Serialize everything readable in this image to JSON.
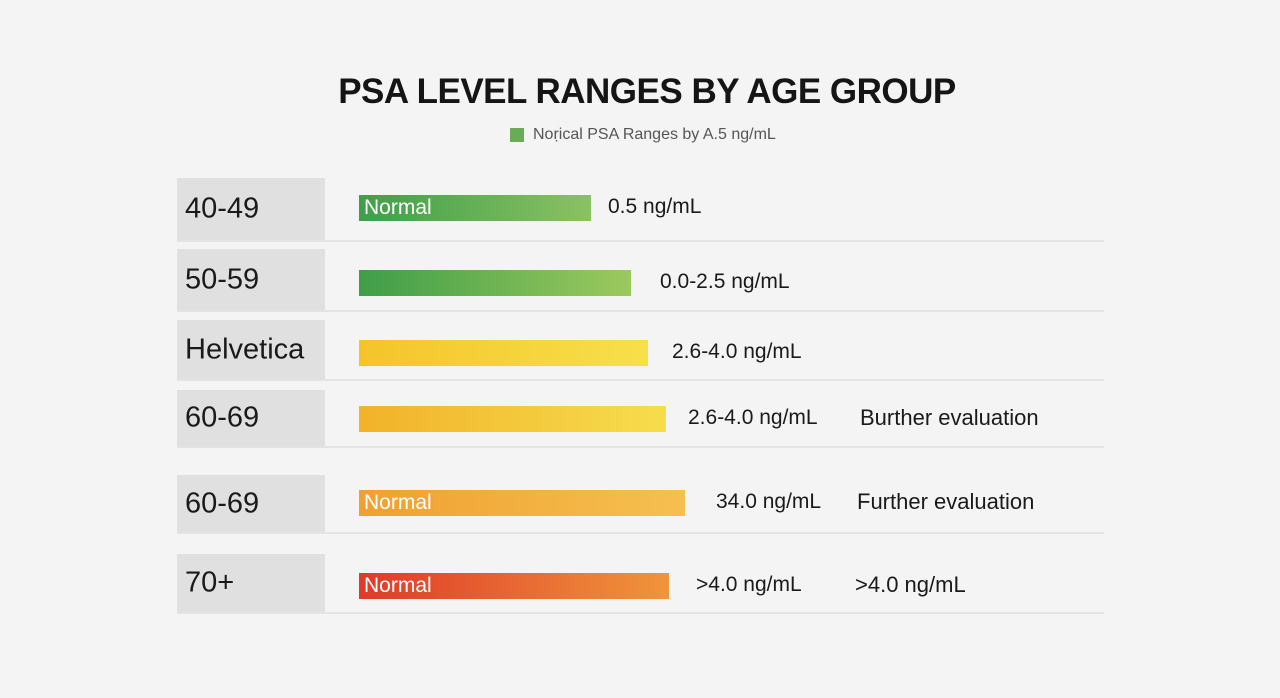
{
  "chart_data": {
    "type": "bar",
    "title": "PSA LEVEL RANGES BY AGE GROUP",
    "legend": [
      {
        "label": "Noṛical PSA Ranges by A.5 ng/mL",
        "color": "#6aab56"
      }
    ],
    "legend_placement": "top",
    "grid": false,
    "categories": [
      "40-49",
      "50-59",
      "Helvetica",
      "60-69",
      "60-69",
      "70+"
    ],
    "rows": [
      {
        "category": "40-49",
        "bar_label": "Normal",
        "value": "0.5 ng/mL",
        "note": "",
        "color_start": "#3f9f49",
        "color_end": "#8bc163"
      },
      {
        "category": "50-59",
        "bar_label": "",
        "value": "0.0-2.5 ng/mL",
        "note": "",
        "color_start": "#3f9e48",
        "color_end": "#9cc95e"
      },
      {
        "category": "Helvetica",
        "bar_label": "",
        "value": "2.6-4.0 ng/mL",
        "note": "",
        "color_start": "#f5c42a",
        "color_end": "#f7e04a"
      },
      {
        "category": "60-69",
        "bar_label": "",
        "value": "2.6-4.0 ng/mL",
        "note": "Burther evaluation",
        "color_start": "#f2b22a",
        "color_end": "#f6dd4c"
      },
      {
        "category": "60-69",
        "bar_label": "Normal",
        "value": "34.0 ng/mL",
        "note": "Further evaluation",
        "color_start": "#f0a030",
        "color_end": "#f5c050"
      },
      {
        "category": "70+",
        "bar_label": "Normal",
        "value": ">4.0 ng/mL",
        "note": ">4.0 ng/mL",
        "color_start": "#df3a2a",
        "color_end": "#f0953a"
      }
    ]
  }
}
